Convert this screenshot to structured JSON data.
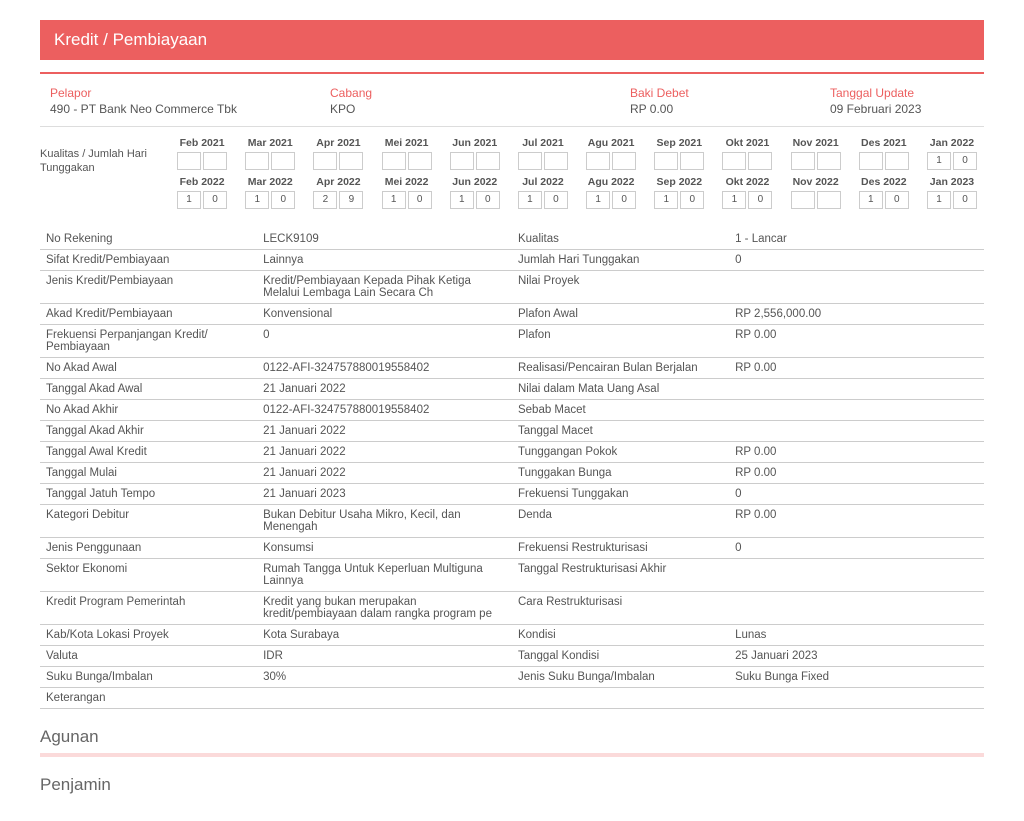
{
  "header": {
    "title": "Kredit / Pembiayaan"
  },
  "info": {
    "pelapor_label": "Pelapor",
    "pelapor_value": "490 - PT Bank Neo Commerce Tbk",
    "cabang_label": "Cabang",
    "cabang_value": "KPO",
    "baki_label": "Baki Debet",
    "baki_value": "RP 0.00",
    "tanggal_label": "Tanggal Update",
    "tanggal_value": "09 Februari 2023"
  },
  "history": {
    "row_label": "Kualitas / Jumlah Hari Tunggakan",
    "row1": [
      {
        "m": "Feb 2021",
        "a": "",
        "b": ""
      },
      {
        "m": "Mar 2021",
        "a": "",
        "b": ""
      },
      {
        "m": "Apr 2021",
        "a": "",
        "b": ""
      },
      {
        "m": "Mei 2021",
        "a": "",
        "b": ""
      },
      {
        "m": "Jun 2021",
        "a": "",
        "b": ""
      },
      {
        "m": "Jul 2021",
        "a": "",
        "b": ""
      },
      {
        "m": "Agu 2021",
        "a": "",
        "b": ""
      },
      {
        "m": "Sep 2021",
        "a": "",
        "b": ""
      },
      {
        "m": "Okt 2021",
        "a": "",
        "b": ""
      },
      {
        "m": "Nov 2021",
        "a": "",
        "b": ""
      },
      {
        "m": "Des 2021",
        "a": "",
        "b": ""
      },
      {
        "m": "Jan 2022",
        "a": "1",
        "b": "0"
      }
    ],
    "row2": [
      {
        "m": "Feb 2022",
        "a": "1",
        "b": "0"
      },
      {
        "m": "Mar 2022",
        "a": "1",
        "b": "0"
      },
      {
        "m": "Apr 2022",
        "a": "2",
        "b": "9"
      },
      {
        "m": "Mei 2022",
        "a": "1",
        "b": "0"
      },
      {
        "m": "Jun 2022",
        "a": "1",
        "b": "0"
      },
      {
        "m": "Jul 2022",
        "a": "1",
        "b": "0"
      },
      {
        "m": "Agu 2022",
        "a": "1",
        "b": "0"
      },
      {
        "m": "Sep 2022",
        "a": "1",
        "b": "0"
      },
      {
        "m": "Okt 2022",
        "a": "1",
        "b": "0"
      },
      {
        "m": "Nov 2022",
        "a": "",
        "b": ""
      },
      {
        "m": "Des 2022",
        "a": "1",
        "b": "0"
      },
      {
        "m": "Jan 2023",
        "a": "1",
        "b": "0"
      }
    ]
  },
  "details": [
    {
      "l1": "No Rekening",
      "v1": "LECK9109",
      "l2": "Kualitas",
      "v2": "1 - Lancar"
    },
    {
      "l1": "Sifat Kredit/Pembiayaan",
      "v1": "Lainnya",
      "l2": "Jumlah Hari Tunggakan",
      "v2": "0"
    },
    {
      "l1": "Jenis Kredit/Pembiayaan",
      "v1": "Kredit/Pembiayaan Kepada Pihak Ketiga Melalui Lembaga Lain Secara Ch",
      "l2": "Nilai Proyek",
      "v2": ""
    },
    {
      "l1": "Akad Kredit/Pembiayaan",
      "v1": "Konvensional",
      "l2": "Plafon Awal",
      "v2": "RP 2,556,000.00"
    },
    {
      "l1": "Frekuensi Perpanjangan Kredit/ Pembiayaan",
      "v1": "0",
      "l2": "Plafon",
      "v2": "RP 0.00"
    },
    {
      "l1": "No Akad Awal",
      "v1": "0122-AFI-324757880019558402",
      "l2": "Realisasi/Pencairan Bulan Berjalan",
      "v2": "RP 0.00"
    },
    {
      "l1": "Tanggal Akad Awal",
      "v1": "21 Januari 2022",
      "l2": "Nilai dalam Mata Uang Asal",
      "v2": ""
    },
    {
      "l1": "No Akad Akhir",
      "v1": "0122-AFI-324757880019558402",
      "l2": "Sebab Macet",
      "v2": ""
    },
    {
      "l1": "Tanggal Akad Akhir",
      "v1": "21 Januari 2022",
      "l2": "Tanggal Macet",
      "v2": ""
    },
    {
      "l1": "Tanggal Awal Kredit",
      "v1": "21 Januari 2022",
      "l2": "Tunggangan Pokok",
      "v2": "RP 0.00"
    },
    {
      "l1": "Tanggal Mulai",
      "v1": "21 Januari 2022",
      "l2": "Tunggakan Bunga",
      "v2": "RP 0.00"
    },
    {
      "l1": "Tanggal Jatuh Tempo",
      "v1": "21 Januari 2023",
      "l2": "Frekuensi Tunggakan",
      "v2": "0"
    },
    {
      "l1": "Kategori Debitur",
      "v1": "Bukan Debitur Usaha Mikro, Kecil, dan Menengah",
      "l2": "Denda",
      "v2": "RP 0.00"
    },
    {
      "l1": "Jenis Penggunaan",
      "v1": "Konsumsi",
      "l2": "Frekuensi Restrukturisasi",
      "v2": "0"
    },
    {
      "l1": "Sektor Ekonomi",
      "v1": "Rumah Tangga Untuk Keperluan Multiguna Lainnya",
      "l2": "Tanggal Restrukturisasi Akhir",
      "v2": ""
    },
    {
      "l1": "Kredit Program Pemerintah",
      "v1": "Kredit yang bukan merupakan kredit/pembiayaan dalam rangka program pe",
      "l2": "Cara Restrukturisasi",
      "v2": ""
    },
    {
      "l1": "Kab/Kota Lokasi Proyek",
      "v1": "Kota Surabaya",
      "l2": "Kondisi",
      "v2": "Lunas"
    },
    {
      "l1": "Valuta",
      "v1": "IDR",
      "l2": "Tanggal Kondisi",
      "v2": "25 Januari 2023"
    },
    {
      "l1": "Suku Bunga/Imbalan",
      "v1": "30%",
      "l2": "Jenis Suku Bunga/Imbalan",
      "v2": "Suku Bunga Fixed"
    },
    {
      "l1": "Keterangan",
      "v1": "",
      "l2": "",
      "v2": ""
    }
  ],
  "sub1": "Agunan",
  "sub2": "Penjamin"
}
